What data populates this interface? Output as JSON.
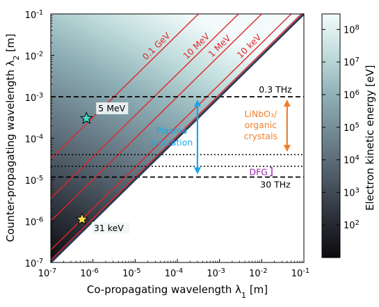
{
  "chart_data": {
    "type": "heatmap",
    "xlabel": "Co-propagating wavelength λ",
    "xlabel_sub": "1",
    "xlabel_unit": " [m]",
    "ylabel": "Counter-propagating wavelength λ",
    "ylabel_sub": "2",
    "ylabel_unit": " [m]",
    "x_scale": "log",
    "y_scale": "log",
    "xlim": [
      1e-07,
      0.1
    ],
    "ylim": [
      1e-07,
      0.1
    ],
    "x_ticks": [
      {
        "exp": -7,
        "label": "10",
        "sup": "-7"
      },
      {
        "exp": -6,
        "label": "10",
        "sup": "-6"
      },
      {
        "exp": -5,
        "label": "10",
        "sup": "-5"
      },
      {
        "exp": -4,
        "label": "10",
        "sup": "-4"
      },
      {
        "exp": -3,
        "label": "10",
        "sup": "-3"
      },
      {
        "exp": -2,
        "label": "10",
        "sup": "-2"
      },
      {
        "exp": -1,
        "label": "10",
        "sup": "-1"
      }
    ],
    "y_ticks": [
      {
        "exp": -7,
        "label": "10",
        "sup": "-7"
      },
      {
        "exp": -6,
        "label": "10",
        "sup": "-6"
      },
      {
        "exp": -5,
        "label": "10",
        "sup": "-5"
      },
      {
        "exp": -4,
        "label": "10",
        "sup": "-4"
      },
      {
        "exp": -3,
        "label": "10",
        "sup": "-3"
      },
      {
        "exp": -2,
        "label": "10",
        "sup": "-2"
      },
      {
        "exp": -1,
        "label": "10",
        "sup": "-1"
      }
    ],
    "colorbar": {
      "label": "Electron kinetic energy [eV]",
      "scale": "log",
      "range": [
        10,
        300000000
      ],
      "ticks": [
        {
          "exp": 2,
          "label": "10",
          "sup": "2"
        },
        {
          "exp": 3,
          "label": "10",
          "sup": "3"
        },
        {
          "exp": 4,
          "label": "10",
          "sup": "4"
        },
        {
          "exp": 5,
          "label": "10",
          "sup": "5"
        },
        {
          "exp": 6,
          "label": "10",
          "sup": "6"
        },
        {
          "exp": 7,
          "label": "10",
          "sup": "7"
        },
        {
          "exp": 8,
          "label": "10",
          "sup": "8"
        }
      ]
    },
    "energy_contours": [
      {
        "label": "0.1 GeV",
        "offset_log10": -2.5
      },
      {
        "label": "10 MeV",
        "offset_log10": -1.55
      },
      {
        "label": "1 MeV",
        "offset_log10": -1.0
      },
      {
        "label": "10 keV",
        "offset_log10": -0.3
      },
      {
        "label": "",
        "offset_log10": -0.06
      }
    ],
    "contour_color": "#e0262a",
    "horizontal_lines": [
      {
        "y": 0.001,
        "style": "dashed",
        "label": "0.3 THz"
      },
      {
        "y": 1.15e-05,
        "style": "dashed",
        "label": "30 THz"
      },
      {
        "y": 4e-05,
        "style": "dotted",
        "label": ""
      },
      {
        "y": 2.1e-05,
        "style": "dotted",
        "label": ""
      }
    ],
    "markers": [
      {
        "x": 7e-07,
        "y": 0.0003,
        "label": "5 MeV",
        "color": "#49d6c6"
      },
      {
        "x": 5.5e-07,
        "y": 1.1e-06,
        "label": "31 keV",
        "color": "#f7e04a"
      }
    ],
    "annotations": [
      {
        "id": "plasma",
        "lines": [
          "Plasma",
          "ionization"
        ],
        "color": "#19a7e8",
        "arrow_y": [
          0.001,
          1.15e-05
        ],
        "arrow_x": 0.0003
      },
      {
        "id": "crystals",
        "lines": [
          "LiNbO₃/",
          "organic",
          "crystals"
        ],
        "color": "#f07f2a",
        "arrow_y": [
          0.001,
          4e-05
        ],
        "arrow_x": 0.04
      },
      {
        "id": "dfg",
        "lines": [
          "DFG"
        ],
        "color": "#9b1fb0",
        "bracket_y": [
          2.1e-05,
          1.15e-05
        ]
      }
    ],
    "colormap": [
      "#0b0b0f",
      "#2b3039",
      "#4f5b67",
      "#6f8691",
      "#8fb0b6",
      "#c0dcdc",
      "#f4fbfb"
    ]
  }
}
